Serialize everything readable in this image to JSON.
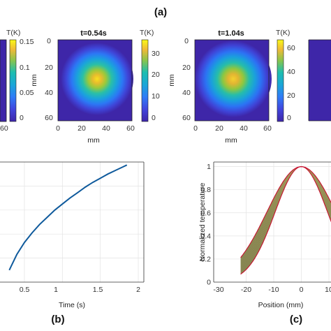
{
  "panel_labels": {
    "a": "(a)",
    "b": "(b)",
    "c": "(c)"
  },
  "chart_data": [
    {
      "type": "heatmap",
      "panel": "left-partial",
      "colorbar_title": "T(K)",
      "colorbar_ticks": [
        "0.15",
        "0.1",
        "0.05",
        "0"
      ],
      "colorbar_range": [
        0,
        0.16
      ],
      "x_ticks": [
        "60"
      ],
      "colormap": "parula"
    },
    {
      "type": "heatmap",
      "panel": "t=0.54s",
      "title": "t=0.54s",
      "xlabel": "mm",
      "ylabel": "mm",
      "x_ticks": [
        "0",
        "20",
        "40",
        "60"
      ],
      "y_ticks": [
        "0",
        "20",
        "40",
        "60"
      ],
      "colorbar_title": "T(K)",
      "colorbar_ticks": [
        "30",
        "20",
        "10",
        "0"
      ],
      "colorbar_range": [
        0,
        37
      ],
      "peak_at_mm": [
        31,
        31
      ],
      "colormap": "parula"
    },
    {
      "type": "heatmap",
      "panel": "t=1.04s",
      "title": "t=1.04s",
      "xlabel": "mm",
      "ylabel": "mm",
      "x_ticks": [
        "0",
        "20",
        "40",
        "60"
      ],
      "y_ticks": [
        "0",
        "20",
        "40",
        "60"
      ],
      "colorbar_title": "T(K)",
      "colorbar_ticks": [
        "60",
        "40",
        "20",
        "0"
      ],
      "colorbar_range": [
        0,
        66
      ],
      "peak_at_mm": [
        31,
        31
      ],
      "colormap": "parula"
    },
    {
      "type": "line",
      "panel": "(b)",
      "xlabel": "Time (s)",
      "x_ticks": [
        "0.5",
        "1",
        "1.5",
        "2"
      ],
      "xlim": [
        0.3,
        2.0
      ],
      "ylim": [
        0,
        1
      ],
      "grid": true,
      "color": "#0f5a9c",
      "series": [
        {
          "x": [
            0.3,
            0.4,
            0.5,
            0.6,
            0.7,
            0.8,
            0.9,
            1.0,
            1.1,
            1.2,
            1.3,
            1.4,
            1.5,
            1.6,
            1.7,
            1.8,
            1.85
          ],
          "y": [
            0.1,
            0.23,
            0.33,
            0.41,
            0.48,
            0.54,
            0.6,
            0.65,
            0.7,
            0.745,
            0.79,
            0.83,
            0.865,
            0.9,
            0.93,
            0.96,
            0.975
          ]
        }
      ]
    },
    {
      "type": "line",
      "panel": "(c)",
      "xlabel": "Position (mm)",
      "ylabel": "Normalized temperature",
      "x_ticks": [
        "-30",
        "-20",
        "-10",
        "0",
        "10"
      ],
      "y_ticks": [
        "1",
        "0.8",
        "0.6",
        "0.4",
        "0.2",
        "0"
      ],
      "xlim": [
        -30,
        15
      ],
      "ylim": [
        0,
        1.04
      ],
      "grid": true,
      "band": {
        "x_range": [
          -22,
          22
        ],
        "inner_sigma_mm": 9.5,
        "outer_sigma_mm": 12.5,
        "fill": "#7f7f4f",
        "edge_color": "#c8102e"
      }
    }
  ]
}
